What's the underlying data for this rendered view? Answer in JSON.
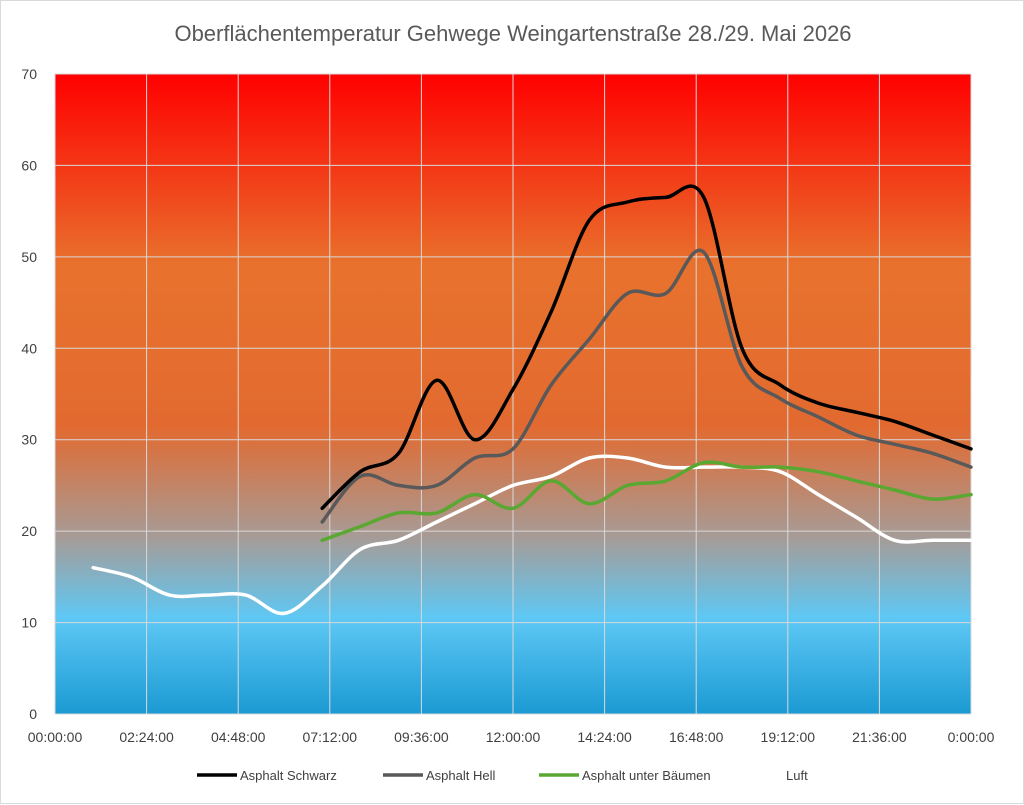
{
  "chart_data": {
    "type": "line",
    "title": "Oberflächentemperatur Gehwege Weingartenstraße 28./29. Mai 2026",
    "xlabel": "",
    "ylabel": "",
    "x_tick_labels": [
      "00:00:00",
      "02:24:00",
      "04:48:00",
      "07:12:00",
      "09:36:00",
      "12:00:00",
      "14:24:00",
      "16:48:00",
      "19:12:00",
      "21:36:00",
      "0:00:00"
    ],
    "xlim_hours": [
      0,
      24
    ],
    "ylim": [
      0,
      70
    ],
    "y_ticks": [
      0,
      10,
      20,
      30,
      40,
      50,
      60,
      70
    ],
    "grid": true,
    "background_gradient": "red (top) to orange to blue (bottom)",
    "legend_position": "bottom",
    "series": [
      {
        "name": "Asphalt Schwarz",
        "color": "#000000",
        "x_hours": [
          7,
          8,
          9,
          10,
          11,
          12,
          13,
          14,
          15,
          16,
          17,
          18,
          19,
          20,
          21,
          22,
          23,
          24
        ],
        "values": [
          22.5,
          26.5,
          28.5,
          36.5,
          30,
          35.5,
          44,
          54,
          56,
          56.5,
          56.5,
          40,
          36,
          34,
          33,
          32,
          30.5,
          29
        ]
      },
      {
        "name": "Asphalt Hell",
        "color": "#595959",
        "x_hours": [
          7,
          8,
          9,
          10,
          11,
          12,
          13,
          14,
          15,
          16,
          17,
          18,
          19,
          20,
          21,
          22,
          23,
          24
        ],
        "values": [
          21,
          26,
          25,
          25,
          28,
          29,
          36,
          41,
          46,
          46,
          50.5,
          38,
          34.5,
          32.5,
          30.5,
          29.5,
          28.5,
          27
        ]
      },
      {
        "name": "Asphalt unter Bäumen",
        "color": "#5aa832",
        "x_hours": [
          7,
          8,
          9,
          10,
          11,
          12,
          13,
          14,
          15,
          16,
          17,
          18,
          19,
          20,
          21,
          22,
          23,
          24
        ],
        "values": [
          19,
          20.5,
          22,
          22,
          24,
          22.5,
          25.5,
          23,
          25,
          25.5,
          27.5,
          27,
          27,
          26.5,
          25.5,
          24.5,
          23.5,
          24
        ]
      },
      {
        "name": "Luft",
        "color": "#ffffff",
        "x_hours": [
          1,
          2,
          3,
          4,
          5,
          6,
          7,
          8,
          9,
          10,
          11,
          12,
          13,
          14,
          15,
          16,
          17,
          18,
          19,
          20,
          21,
          22,
          23,
          24
        ],
        "values": [
          16,
          15,
          13,
          13,
          13,
          11,
          14,
          18,
          19,
          21,
          23,
          25,
          26,
          28,
          28,
          27,
          27,
          27,
          26.5,
          24,
          21.5,
          19,
          19,
          19
        ]
      }
    ]
  }
}
